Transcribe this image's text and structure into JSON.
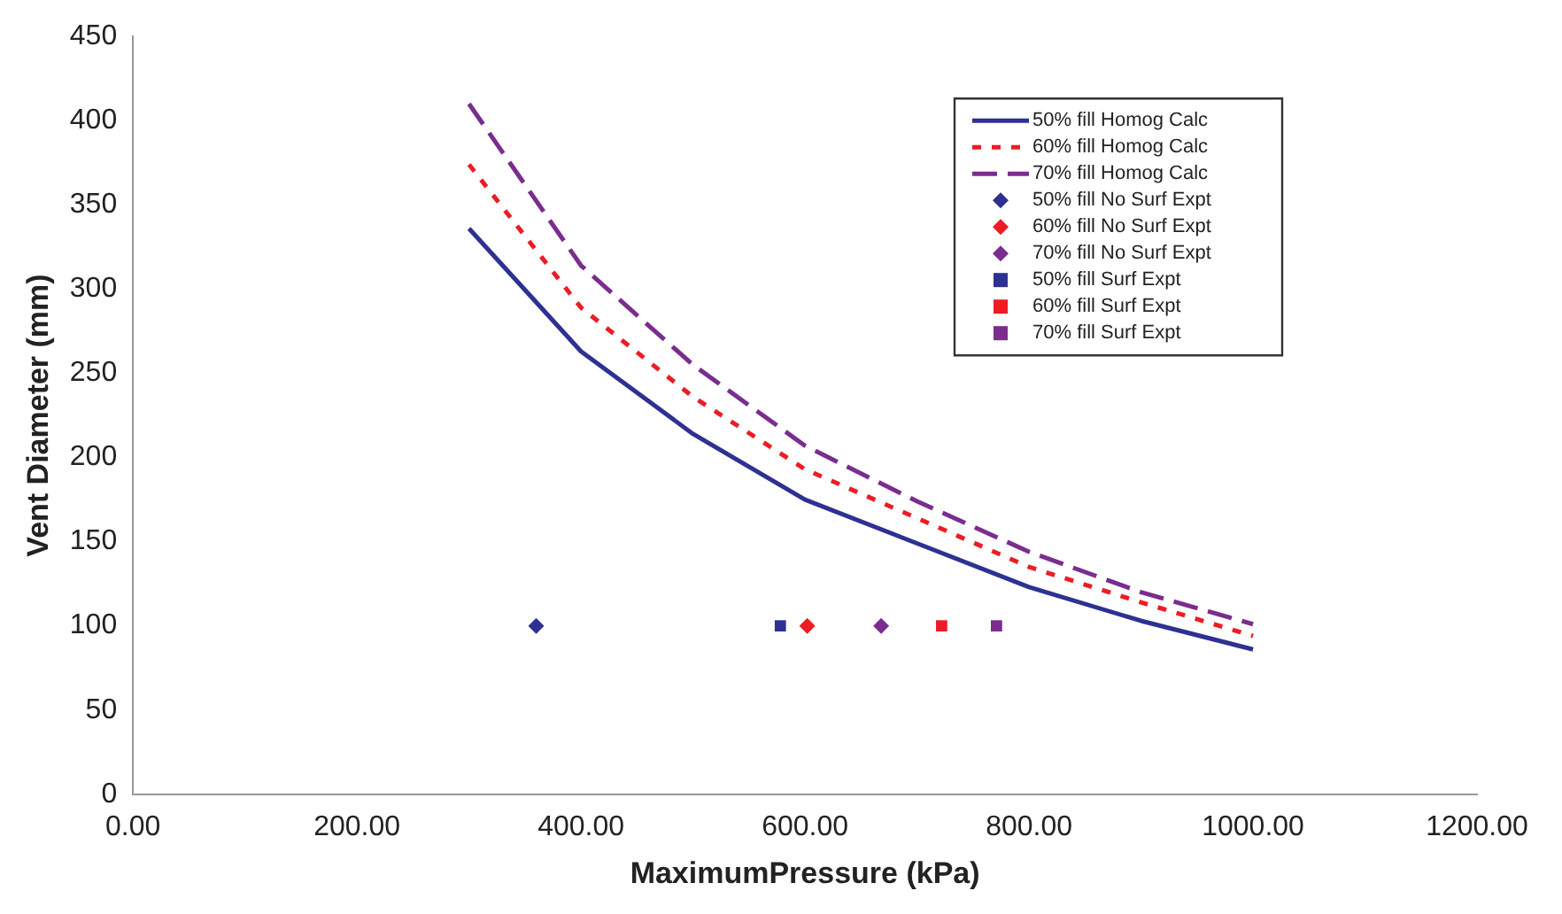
{
  "chart_data": {
    "type": "line",
    "xlabel": "MaximumPressure (kPa)",
    "ylabel": "Vent Diameter (mm)",
    "xlim": [
      0,
      1200
    ],
    "xticks": [
      {
        "value": 0,
        "label": "0.00"
      },
      {
        "value": 200,
        "label": "200.00"
      },
      {
        "value": 400,
        "label": "400.00"
      },
      {
        "value": 600,
        "label": "600.00"
      },
      {
        "value": 800,
        "label": "800.00"
      },
      {
        "value": 1000,
        "label": "1000.00"
      },
      {
        "value": 1200,
        "label": "1200.00"
      }
    ],
    "ylim": [
      0,
      450
    ],
    "yticks": [
      0,
      50,
      100,
      150,
      200,
      250,
      300,
      350,
      400,
      450
    ],
    "grid": false,
    "legend": "top right",
    "series": [
      {
        "name": "50% fill Homog Calc",
        "type": "line",
        "line_style": "solid",
        "marker": "none",
        "color": "#2e3192",
        "x": [
          300,
          400,
          500,
          600,
          700,
          800,
          900,
          1000
        ],
        "values": [
          336,
          263,
          214,
          175,
          149,
          123,
          103,
          86
        ]
      },
      {
        "name": "60% fill Homog Calc",
        "type": "line",
        "line_style": "dotted",
        "marker": "none",
        "color": "#ed1c24",
        "x": [
          300,
          400,
          500,
          600,
          700,
          800,
          900,
          1000
        ],
        "values": [
          374,
          289,
          236,
          193,
          164,
          135,
          114,
          94
        ]
      },
      {
        "name": "70% fill Homog Calc",
        "type": "line",
        "line_style": "dashed",
        "marker": "none",
        "color": "#7b2c8f",
        "x": [
          300,
          400,
          500,
          600,
          700,
          800,
          900,
          1000
        ],
        "values": [
          410,
          314,
          255,
          207,
          174,
          144,
          120,
          101
        ]
      },
      {
        "name": "50% fill No Surf Expt",
        "type": "scatter",
        "marker": "diamond",
        "color": "#2e3192",
        "x": [
          360
        ],
        "values": [
          100
        ]
      },
      {
        "name": "60% fill No Surf Expt",
        "type": "scatter",
        "marker": "diamond",
        "color": "#ed1c24",
        "x": [
          602
        ],
        "values": [
          100
        ]
      },
      {
        "name": "70% fill No Surf Expt",
        "type": "scatter",
        "marker": "diamond",
        "color": "#7b2c8f",
        "x": [
          668
        ],
        "values": [
          100
        ]
      },
      {
        "name": "50% fill Surf Expt",
        "type": "scatter",
        "marker": "square",
        "color": "#2e3192",
        "x": [
          578
        ],
        "values": [
          100
        ]
      },
      {
        "name": "60% fill Surf Expt",
        "type": "scatter",
        "marker": "square",
        "color": "#ed1c24",
        "x": [
          722
        ],
        "values": [
          100
        ]
      },
      {
        "name": "70% fill Surf Expt",
        "type": "scatter",
        "marker": "square",
        "color": "#7b2c8f",
        "x": [
          771
        ],
        "values": [
          100
        ]
      }
    ]
  }
}
